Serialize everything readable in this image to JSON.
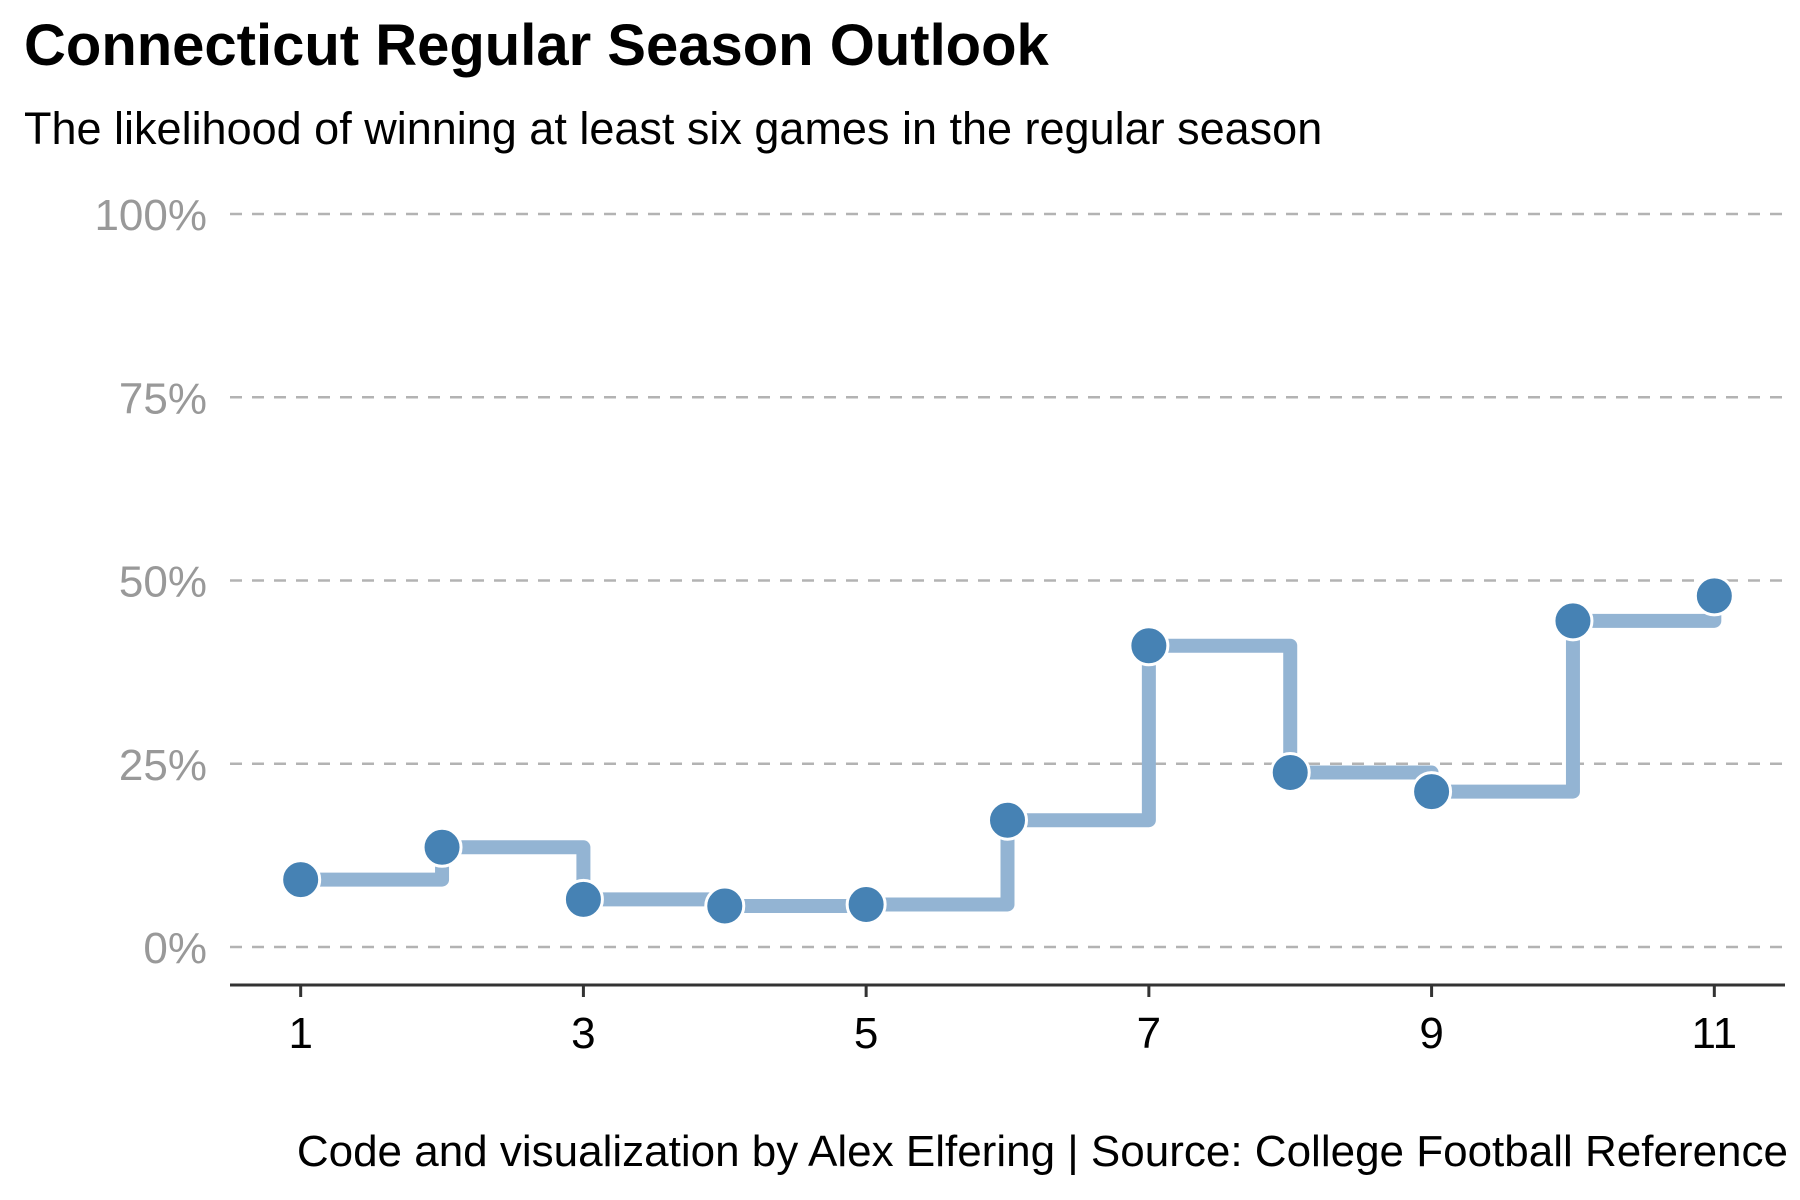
{
  "title": "Connecticut Regular Season Outlook",
  "subtitle": "The likelihood of winning at least six games in the regular season",
  "caption": "Code and visualization by Alex Elfering | Source: College Football Reference",
  "colors": {
    "line": "#93b4d3",
    "point": "#4682b4",
    "grid": "#b3b3b3",
    "ytick": "#999999",
    "axis": "#333333"
  },
  "chart_data": {
    "type": "line",
    "step": "hv",
    "title": "Connecticut Regular Season Outlook",
    "subtitle": "The likelihood of winning at least six games in the regular season",
    "xlabel": "",
    "ylabel": "",
    "x": [
      1,
      2,
      3,
      4,
      5,
      6,
      7,
      8,
      9,
      10,
      11
    ],
    "values": [
      9.2,
      13.6,
      6.5,
      5.6,
      5.8,
      17.3,
      41.1,
      23.8,
      21.2,
      44.5,
      47.9
    ],
    "xlim": [
      0.5,
      11.5
    ],
    "ylim": [
      0,
      100
    ],
    "xticks": [
      1,
      3,
      5,
      7,
      9,
      11
    ],
    "yticks": [
      0,
      25,
      50,
      75,
      100
    ],
    "ytick_labels": [
      "0%",
      "25%",
      "50%",
      "75%",
      "100%"
    ],
    "grid": "horizontal dashed",
    "legend": "none"
  }
}
